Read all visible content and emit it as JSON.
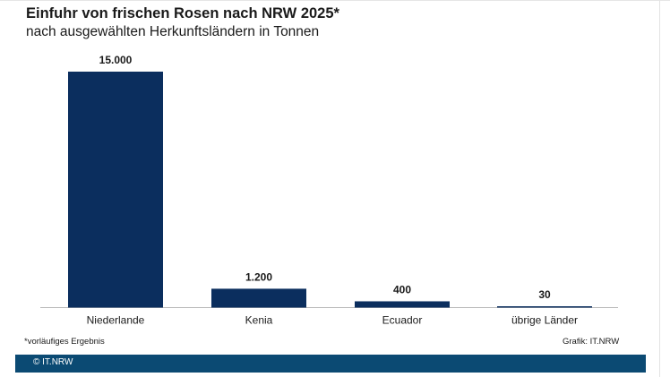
{
  "header": {
    "title": "Einfuhr von frischen Rosen nach NRW 2025*",
    "subtitle": "nach ausgewählten Herkunftsländern in Tonnen"
  },
  "chart_data": {
    "type": "bar",
    "title": "Einfuhr von frischen Rosen nach NRW 2025*",
    "subtitle": "nach ausgewählten Herkunftsländern in Tonnen",
    "categories": [
      "Niederlande",
      "Kenia",
      "Ecuador",
      "übrige Länder"
    ],
    "values": [
      15000,
      1200,
      400,
      30
    ],
    "value_labels": [
      "15.000",
      "1.200",
      "400",
      "30"
    ],
    "xlabel": "",
    "ylabel": "",
    "ylim": [
      0,
      15000
    ],
    "grid": false,
    "legend": "none",
    "bar_color": "#0b2e5e"
  },
  "footer": {
    "footnote": "*vorläufiges Ergebnis",
    "source": "Grafik: IT.NRW",
    "copyright": "© IT.NRW",
    "bar_color": "#0b4a73"
  }
}
